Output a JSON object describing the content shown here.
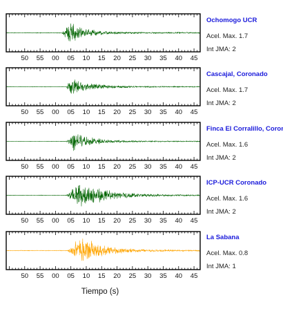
{
  "chart_data": {
    "type": "line",
    "xlabel": "Tiempo (s)",
    "xlim": [
      44,
      47
    ],
    "x_ticks": [
      "50",
      "55",
      "00",
      "05",
      "10",
      "15",
      "20",
      "25",
      "30",
      "35",
      "40",
      "45"
    ],
    "x_tick_values": [
      50,
      55,
      60,
      65,
      70,
      75,
      80,
      85,
      90,
      95,
      100,
      105
    ],
    "xlim_values": [
      44,
      107
    ],
    "panels": [
      {
        "station": "Ochomogo UCR",
        "acel_label": "Acel. Max. 1.7",
        "jma_label": "Int JMA: 2",
        "color": "#006400",
        "onset": 62.0,
        "peak_time": 64.5,
        "amplitude": 0.75,
        "decay": 5.5,
        "noise": 0.04
      },
      {
        "station": "Cascajal, Coronado",
        "acel_label": "Acel. Max. 1.7",
        "jma_label": "Int JMA: 2",
        "color": "#006400",
        "onset": 63.5,
        "peak_time": 65.0,
        "amplitude": 0.6,
        "decay": 6.5,
        "noise": 0.03
      },
      {
        "station": "Finca El Corralillo, Coronado",
        "acel_label": "Acel. Max. 1.6",
        "jma_label": "Int JMA: 2",
        "color": "#006400",
        "onset": 63.5,
        "peak_time": 66.0,
        "amplitude": 0.6,
        "decay": 6.0,
        "noise": 0.03
      },
      {
        "station": "ICP-UCR Coronado",
        "acel_label": "Acel. Max. 1.6",
        "jma_label": "Int JMA: 2",
        "color": "#006400",
        "onset": 63.5,
        "peak_time": 67.5,
        "amplitude": 0.9,
        "decay": 9.0,
        "noise": 0.03
      },
      {
        "station": "La Sabana",
        "acel_label": "Acel. Max. 0.8",
        "jma_label": "Int JMA: 1",
        "color": "#ffa500",
        "onset": 64.0,
        "peak_time": 68.0,
        "amplitude": 0.95,
        "decay": 7.0,
        "noise": 0.04
      }
    ]
  }
}
